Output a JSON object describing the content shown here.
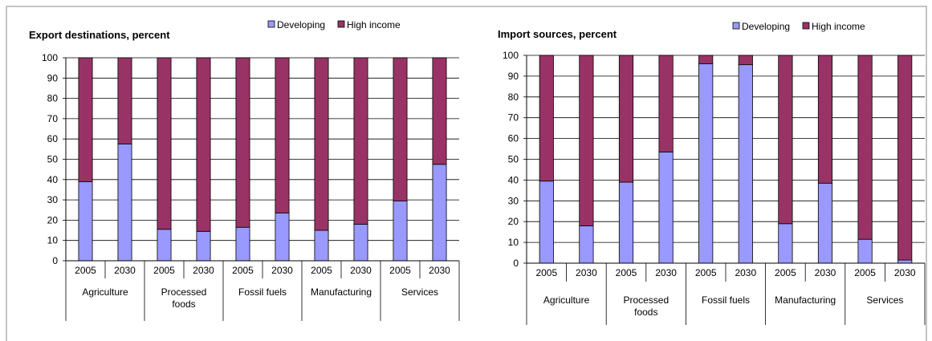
{
  "colors": {
    "developing": "#9999ff",
    "high_income": "#993366",
    "axis": "#000000",
    "border": "#888888"
  },
  "chart_data": [
    {
      "type": "bar",
      "stacked": true,
      "title": "Export destinations, percent",
      "legend_position": "top",
      "ylim": [
        0,
        100
      ],
      "yticks": [
        "0",
        "10",
        "20",
        "30",
        "40",
        "50",
        "60",
        "70",
        "80",
        "90",
        "100"
      ],
      "grid": true,
      "years": [
        "2005",
        "2030",
        "2005",
        "2030",
        "2005",
        "2030",
        "2005",
        "2030",
        "2005",
        "2030"
      ],
      "groups": [
        {
          "label_lines": [
            "Agriculture"
          ]
        },
        {
          "label_lines": [
            "Processed",
            "foods"
          ]
        },
        {
          "label_lines": [
            "Fossil fuels"
          ]
        },
        {
          "label_lines": [
            "Manufacturing"
          ]
        },
        {
          "label_lines": [
            "Services"
          ]
        }
      ],
      "series": [
        {
          "name": "Developing",
          "values": [
            39,
            57.5,
            15.5,
            14.5,
            16.5,
            23.5,
            15,
            18,
            29.5,
            47.5
          ]
        },
        {
          "name": "High income",
          "values": [
            61,
            42.5,
            84.5,
            85.5,
            83.5,
            76.5,
            85,
            82,
            70.5,
            52.5
          ]
        }
      ]
    },
    {
      "type": "bar",
      "stacked": true,
      "title": "Import sources, percent",
      "legend_position": "top",
      "ylim": [
        0,
        100
      ],
      "yticks": [
        "0",
        "10",
        "20",
        "30",
        "40",
        "50",
        "60",
        "70",
        "80",
        "90",
        "100"
      ],
      "grid": true,
      "years": [
        "2005",
        "2030",
        "2005",
        "2030",
        "2005",
        "2030",
        "2005",
        "2030",
        "2005",
        "2030"
      ],
      "groups": [
        {
          "label_lines": [
            "Agriculture"
          ]
        },
        {
          "label_lines": [
            "Processed",
            "foods"
          ]
        },
        {
          "label_lines": [
            "Fossil fuels"
          ]
        },
        {
          "label_lines": [
            "Manufacturing"
          ]
        },
        {
          "label_lines": [
            "Services"
          ]
        }
      ],
      "series": [
        {
          "name": "Developing",
          "values": [
            39.5,
            18,
            39,
            53.5,
            96,
            95.5,
            19,
            38.5,
            11.5,
            1.5
          ]
        },
        {
          "name": "High income",
          "values": [
            60.5,
            82,
            61,
            46.5,
            4,
            4.5,
            81,
            61.5,
            88.5,
            98.5
          ]
        }
      ]
    }
  ]
}
